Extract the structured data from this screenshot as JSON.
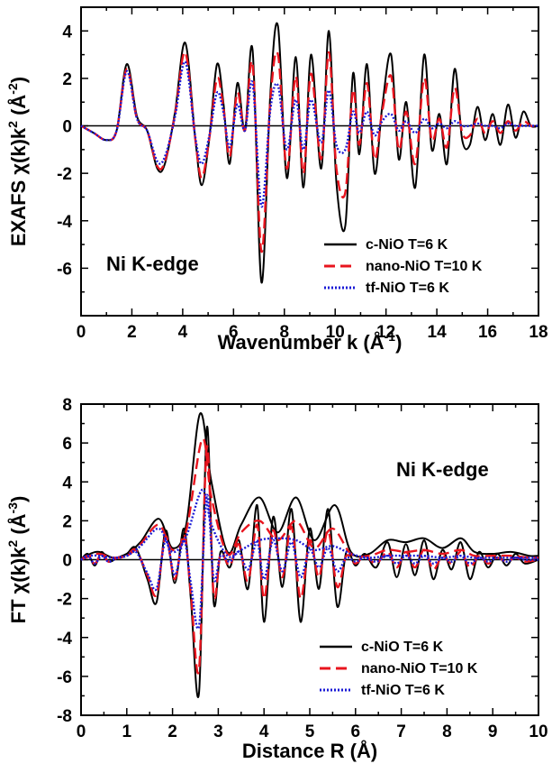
{
  "chart_data": [
    {
      "type": "line",
      "xlabel": "Wavenumber k (Å",
      "xlabel_sup": "-1",
      "xlabel_end": ")",
      "ylabel": "EXAFS χ(k)k",
      "ylabel_sup1": "2",
      "ylabel_mid": " (Å",
      "ylabel_sup2": "-2",
      "ylabel_end": ")",
      "xlim": [
        0,
        18
      ],
      "ylim": [
        -8,
        5
      ],
      "xticks": [
        "0",
        "2",
        "4",
        "6",
        "8",
        "10",
        "12",
        "14",
        "16",
        "18"
      ],
      "yticks": [
        "-6",
        "-4",
        "-2",
        "0",
        "2",
        "4"
      ],
      "annotation": "Ni K-edge",
      "legend_position": "lower-right",
      "series": [
        {
          "name": "c-NiO T=6 K",
          "color": "#000000",
          "style": "solid",
          "x": [
            0,
            0.5,
            1,
            1.4,
            1.8,
            2.2,
            2.6,
            3.0,
            3.3,
            3.7,
            4.1,
            4.5,
            4.75,
            5.05,
            5.35,
            5.6,
            5.85,
            6.15,
            6.45,
            6.75,
            7.1,
            7.45,
            7.75,
            8.1,
            8.45,
            8.75,
            9.05,
            9.45,
            9.75,
            10.05,
            10.4,
            10.7,
            10.95,
            11.25,
            11.55,
            11.85,
            12.2,
            12.5,
            12.8,
            13.15,
            13.5,
            13.8,
            14.1,
            14.4,
            14.7,
            15.0,
            15.3,
            15.6,
            15.9,
            16.2,
            16.5,
            16.8,
            17.1,
            17.4,
            17.7,
            18.0
          ],
          "y": [
            0,
            -0.3,
            -0.6,
            -0.2,
            2.6,
            0.4,
            -0.2,
            -1.8,
            -1.6,
            0.6,
            3.5,
            -0.6,
            -2.5,
            -0.5,
            2.6,
            1.0,
            -1.6,
            1.8,
            -0.2,
            3.2,
            -6.6,
            1.4,
            4.2,
            -2.2,
            2.9,
            -2.6,
            3.0,
            -1.8,
            4.0,
            -2.4,
            -4.2,
            2.2,
            -1.2,
            2.6,
            -2.0,
            0.8,
            3.0,
            -1.4,
            1.0,
            -2.6,
            3.0,
            -1.0,
            0.5,
            -1.6,
            2.4,
            -0.6,
            -0.8,
            0.8,
            -0.6,
            0.5,
            -0.8,
            0.9,
            -0.5,
            0.6,
            0.0,
            0.0
          ]
        },
        {
          "name": "nano-NiO T=10 K",
          "color": "#e8141e",
          "style": "dashed",
          "x": [
            0,
            0.5,
            1,
            1.4,
            1.8,
            2.2,
            2.6,
            3.0,
            3.3,
            3.7,
            4.1,
            4.5,
            4.75,
            5.05,
            5.35,
            5.6,
            5.85,
            6.15,
            6.45,
            6.75,
            7.1,
            7.45,
            7.75,
            8.1,
            8.45,
            8.75,
            9.05,
            9.45,
            9.75,
            10.05,
            10.4,
            10.7,
            10.95,
            11.25,
            11.55,
            11.85,
            12.2,
            12.5,
            12.8,
            13.15,
            13.5,
            13.8,
            14.1,
            14.4,
            14.7,
            15.0,
            15.3,
            15.6,
            15.9,
            16.2,
            16.5,
            16.8,
            17.1,
            17.4,
            17.7,
            18.0
          ],
          "y": [
            0,
            -0.3,
            -0.6,
            -0.2,
            2.4,
            0.3,
            -0.2,
            -1.7,
            -1.5,
            0.5,
            3.1,
            -0.6,
            -2.2,
            -0.5,
            2.0,
            0.8,
            -1.3,
            1.4,
            -0.2,
            2.6,
            -5.3,
            1.1,
            3.0,
            -1.8,
            2.1,
            -2.0,
            2.2,
            -1.4,
            3.1,
            -1.8,
            -2.8,
            1.5,
            -0.8,
            1.8,
            -1.4,
            0.6,
            2.1,
            -1.0,
            0.6,
            -1.6,
            2.0,
            -0.6,
            0.3,
            -0.9,
            1.6,
            -0.3,
            -0.4,
            0.3,
            -0.3,
            0.2,
            -0.3,
            0.2,
            -0.2,
            0.2,
            0.0,
            0.0
          ]
        },
        {
          "name": "tf-NiO T=6 K",
          "color": "#1a1ad6",
          "style": "dotted",
          "x": [
            0,
            0.5,
            1,
            1.4,
            1.8,
            2.2,
            2.6,
            3.0,
            3.3,
            3.7,
            4.1,
            4.5,
            4.75,
            5.05,
            5.35,
            5.6,
            5.85,
            6.15,
            6.45,
            6.75,
            7.1,
            7.45,
            7.75,
            8.1,
            8.45,
            8.75,
            9.05,
            9.45,
            9.75,
            10.05,
            10.4,
            10.7,
            10.95,
            11.25,
            11.55,
            11.85,
            12.2,
            12.5,
            12.8,
            13.15,
            13.5,
            13.8,
            14.1,
            14.4,
            14.7,
            15.0,
            15.3,
            15.6,
            15.9,
            16.2,
            16.5,
            16.8,
            17.1,
            17.4,
            17.7,
            18.0
          ],
          "y": [
            0,
            -0.3,
            -0.6,
            -0.2,
            2.3,
            0.3,
            -0.2,
            -1.5,
            -1.3,
            0.4,
            2.7,
            -0.5,
            -1.6,
            -0.4,
            1.4,
            0.6,
            -0.9,
            0.9,
            -0.2,
            1.8,
            -3.4,
            0.7,
            1.7,
            -1.0,
            1.1,
            -1.0,
            1.1,
            -0.7,
            1.5,
            -0.8,
            -1.0,
            0.6,
            -0.3,
            0.6,
            -0.4,
            0.2,
            0.5,
            -0.2,
            0.2,
            -0.3,
            0.3,
            -0.1,
            0.1,
            -0.1,
            0.2,
            0.0,
            0.0,
            0.1,
            0.0,
            0.0,
            -0.1,
            0.1,
            0.0,
            0.0,
            0.0,
            0.0
          ]
        }
      ]
    },
    {
      "type": "line",
      "xlabel": "Distance R (Å)",
      "ylabel": "FT χ(k)k",
      "ylabel_sup1": "2",
      "ylabel_mid": " (Å",
      "ylabel_sup2": "-3",
      "ylabel_end": ")",
      "xlim": [
        0,
        10
      ],
      "ylim": [
        -8,
        8
      ],
      "xticks": [
        "0",
        "1",
        "2",
        "3",
        "4",
        "5",
        "6",
        "7",
        "8",
        "9",
        "10"
      ],
      "yticks": [
        "-8",
        "-6",
        "-4",
        "-2",
        "0",
        "2",
        "4",
        "6",
        "8"
      ],
      "annotation": "Ni K-edge",
      "legend_position": "lower-right",
      "series": [
        {
          "name": "c-NiO T=6 K",
          "color": "#000000",
          "style": "solid",
          "envelope": {
            "x": [
              0,
              0.2,
              0.4,
              0.7,
              1.0,
              1.3,
              1.7,
              2.0,
              2.3,
              2.6,
              2.85,
              3.2,
              3.5,
              3.9,
              4.3,
              4.7,
              5.1,
              5.55,
              5.9,
              6.3,
              6.7,
              7.1,
              7.5,
              7.9,
              8.3,
              8.6,
              9.0,
              9.4,
              9.8,
              10.0
            ],
            "y": [
              0,
              0.3,
              0.4,
              0.1,
              0.3,
              0.9,
              2.1,
              0.6,
              1.8,
              7.5,
              4.0,
              0.4,
              1.8,
              3.2,
              1.4,
              3.2,
              1.0,
              2.8,
              0.4,
              0.3,
              1.0,
              0.9,
              1.1,
              0.6,
              1.1,
              0.4,
              0.3,
              0.4,
              0.2,
              0.2
            ]
          },
          "x": [
            0,
            0.15,
            0.3,
            0.45,
            0.6,
            0.8,
            1.0,
            1.2,
            1.45,
            1.65,
            1.85,
            2.05,
            2.25,
            2.4,
            2.58,
            2.75,
            2.9,
            3.05,
            3.25,
            3.45,
            3.65,
            3.85,
            4.0,
            4.2,
            4.4,
            4.6,
            4.8,
            5.0,
            5.2,
            5.4,
            5.6,
            5.8,
            6.0,
            6.2,
            6.45,
            6.7,
            6.9,
            7.1,
            7.3,
            7.5,
            7.7,
            7.9,
            8.1,
            8.3,
            8.5,
            8.7,
            8.9,
            9.1,
            9.3,
            9.5,
            9.7,
            10.0
          ],
          "y": [
            0,
            0.3,
            -0.3,
            0.4,
            -0.1,
            0.1,
            0.3,
            0.6,
            -1.0,
            -2.2,
            1.5,
            -1.2,
            1.6,
            -2.0,
            -6.8,
            6.8,
            -2.2,
            0.4,
            -0.4,
            1.0,
            -1.5,
            2.8,
            -3.2,
            2.2,
            -1.4,
            2.6,
            -3.2,
            1.6,
            -1.5,
            2.6,
            -2.4,
            0.4,
            -0.3,
            0.3,
            -0.4,
            0.9,
            -0.9,
            0.8,
            -0.8,
            1.0,
            -1.0,
            0.5,
            -0.5,
            0.9,
            -1.0,
            0.4,
            -0.4,
            0.3,
            -0.3,
            0.3,
            -0.2,
            0.0
          ]
        },
        {
          "name": "nano-NiO T=10 K",
          "color": "#e8141e",
          "style": "dashed",
          "envelope": {
            "x": [
              0,
              0.2,
              0.4,
              0.7,
              1.0,
              1.3,
              1.7,
              2.0,
              2.3,
              2.65,
              2.85,
              3.2,
              3.5,
              3.9,
              4.3,
              4.7,
              5.1,
              5.5,
              5.9,
              6.3,
              6.7,
              7.1,
              7.5,
              7.9,
              8.3,
              8.6,
              9.0,
              9.4,
              9.8,
              10.0
            ],
            "y": [
              0,
              0.2,
              0.3,
              0.1,
              0.2,
              0.8,
              1.8,
              0.5,
              1.5,
              6.2,
              3.2,
              0.3,
              1.4,
              2.0,
              1.0,
              2.0,
              0.6,
              1.6,
              0.3,
              0.2,
              0.5,
              0.4,
              0.5,
              0.3,
              0.5,
              0.2,
              0.2,
              0.2,
              0.1,
              0.1
            ]
          },
          "x": [
            0,
            0.15,
            0.3,
            0.45,
            0.6,
            0.8,
            1.0,
            1.2,
            1.45,
            1.65,
            1.85,
            2.05,
            2.25,
            2.4,
            2.58,
            2.75,
            2.9,
            3.05,
            3.25,
            3.45,
            3.65,
            3.85,
            4.0,
            4.2,
            4.4,
            4.6,
            4.8,
            5.0,
            5.2,
            5.4,
            5.6,
            5.8,
            6.0,
            6.2,
            6.45,
            6.7,
            6.9,
            7.1,
            7.3,
            7.5,
            7.7,
            7.9,
            8.1,
            8.3,
            8.5,
            8.7,
            8.9,
            9.1,
            9.3,
            9.5,
            9.7,
            10.0
          ],
          "y": [
            0,
            0.2,
            -0.2,
            0.3,
            -0.1,
            0.1,
            0.2,
            0.5,
            -0.8,
            -1.8,
            1.2,
            -1.0,
            1.3,
            -1.7,
            -5.6,
            5.8,
            -1.8,
            0.3,
            -0.3,
            0.8,
            -1.1,
            1.8,
            -2.0,
            1.5,
            -0.9,
            1.7,
            -2.0,
            1.0,
            -0.9,
            1.5,
            -1.4,
            0.2,
            -0.2,
            0.2,
            -0.2,
            0.4,
            -0.4,
            0.4,
            -0.4,
            0.5,
            -0.5,
            0.2,
            -0.2,
            0.4,
            -0.4,
            0.2,
            -0.2,
            0.1,
            -0.1,
            0.1,
            -0.1,
            0.0
          ]
        },
        {
          "name": "tf-NiO T=6 K",
          "color": "#1a1ad6",
          "style": "dotted",
          "envelope": {
            "x": [
              0,
              0.2,
              0.4,
              0.7,
              1.0,
              1.3,
              1.7,
              2.0,
              2.3,
              2.65,
              2.85,
              3.2,
              3.5,
              3.9,
              4.3,
              4.7,
              5.1,
              5.5,
              5.9,
              6.3,
              6.7,
              7.1,
              7.5,
              7.9,
              8.3,
              8.6,
              9.0,
              9.4,
              9.8,
              10.0
            ],
            "y": [
              0,
              0.2,
              0.2,
              0.1,
              0.2,
              0.7,
              1.6,
              0.4,
              1.2,
              3.6,
              1.8,
              0.2,
              0.5,
              1.0,
              1.1,
              1.0,
              0.5,
              0.7,
              0.3,
              0.1,
              0.2,
              0.2,
              0.2,
              0.1,
              0.2,
              0.1,
              0.1,
              0.1,
              0.1,
              0.1
            ]
          },
          "x": [
            0,
            0.15,
            0.3,
            0.45,
            0.6,
            0.8,
            1.0,
            1.2,
            1.45,
            1.65,
            1.85,
            2.05,
            2.25,
            2.4,
            2.58,
            2.75,
            2.9,
            3.05,
            3.25,
            3.45,
            3.65,
            3.85,
            4.0,
            4.2,
            4.4,
            4.6,
            4.8,
            5.0,
            5.2,
            5.4,
            5.6,
            5.8,
            6.0,
            6.2,
            6.45,
            6.7,
            6.9,
            7.1,
            7.3,
            7.5,
            7.7,
            7.9,
            8.1,
            8.3,
            8.5,
            8.7,
            8.9,
            9.1,
            9.3,
            9.5,
            9.7,
            10.0
          ],
          "y": [
            0,
            0.2,
            -0.2,
            0.2,
            -0.1,
            0.1,
            0.2,
            0.4,
            -0.7,
            -1.5,
            1.0,
            -0.8,
            1.0,
            -1.2,
            -3.4,
            3.3,
            -1.0,
            0.2,
            -0.1,
            0.4,
            -0.5,
            0.9,
            -1.0,
            1.0,
            -0.6,
            0.9,
            -0.9,
            0.5,
            -0.4,
            0.6,
            -0.6,
            0.1,
            -0.1,
            0.1,
            -0.1,
            0.2,
            -0.2,
            0.2,
            -0.2,
            0.2,
            -0.2,
            0.1,
            -0.1,
            0.2,
            -0.2,
            0.1,
            -0.1,
            0.1,
            -0.1,
            0.1,
            0.0,
            0.0
          ]
        }
      ]
    }
  ]
}
